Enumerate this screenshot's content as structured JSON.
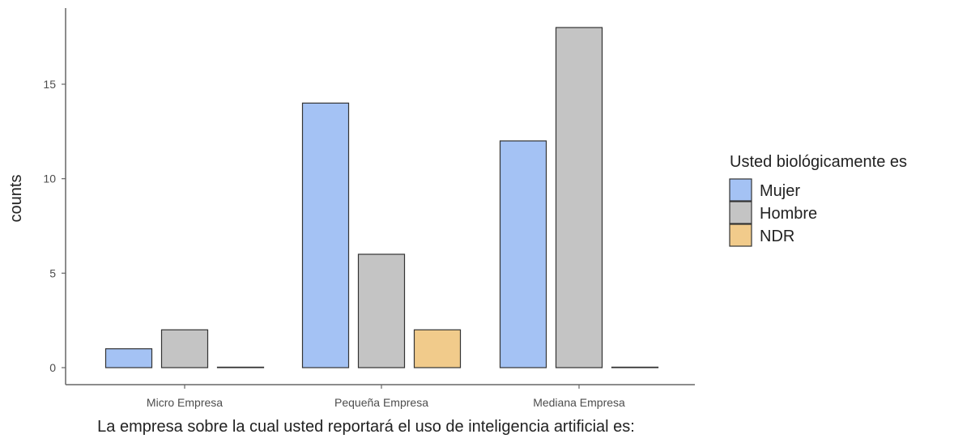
{
  "chart_data": {
    "type": "bar",
    "categories": [
      "Micro Empresa",
      "Pequeña Empresa",
      "Mediana Empresa"
    ],
    "series": [
      {
        "name": "Mujer",
        "values": [
          1,
          14,
          12
        ],
        "color": "#a4c2f4"
      },
      {
        "name": "Hombre",
        "values": [
          2,
          6,
          18
        ],
        "color": "#c4c4c4"
      },
      {
        "name": "NDR",
        "values": [
          0,
          2,
          0
        ],
        "color": "#f1cb8b"
      }
    ],
    "xlabel": "La empresa sobre la cual usted reportará el uso de inteligencia artificial es:",
    "ylabel": "counts",
    "ylim": [
      0,
      18
    ],
    "yticks": [
      0,
      5,
      10,
      15
    ],
    "grid": false,
    "legend": {
      "title": "Usted biológicamente es",
      "position": "right"
    },
    "bar_outline": "#333333",
    "axis_color": "#666666"
  }
}
